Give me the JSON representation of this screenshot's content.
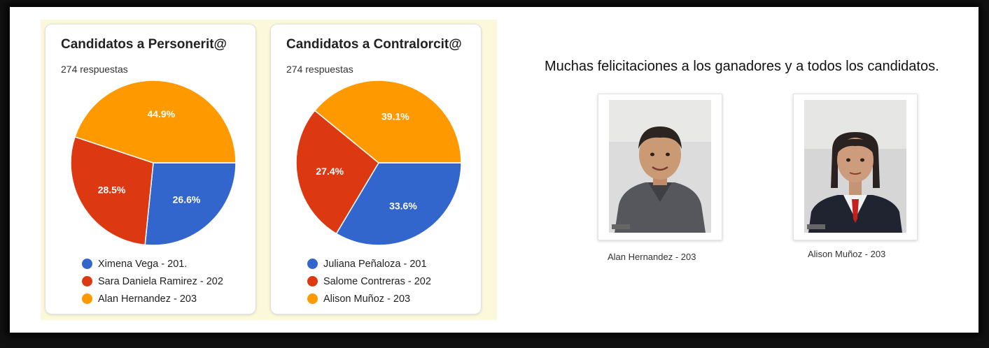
{
  "chart_data": [
    {
      "type": "pie",
      "title": "Candidatos a Personerit@",
      "subtitle": "274 respuestas",
      "categories": [
        "Ximena Vega - 201.",
        "Sara Daniela Ramirez - 202",
        "Alan Hernandez - 203"
      ],
      "values": [
        26.6,
        28.5,
        44.9
      ],
      "value_labels": [
        "26.6%",
        "28.5%",
        "44.9%"
      ],
      "colors": [
        "#3366cc",
        "#dc3912",
        "#ff9900"
      ],
      "legend": "bottom"
    },
    {
      "type": "pie",
      "title": "Candidatos a Contralorcit@",
      "subtitle": "274 respuestas",
      "categories": [
        "Juliana Peñaloza - 201",
        "Salome Contreras - 202",
        "Alison Muñoz - 203"
      ],
      "values": [
        33.6,
        27.4,
        39.1
      ],
      "value_labels": [
        "33.6%",
        "27.4%",
        "39.1%"
      ],
      "colors": [
        "#3366cc",
        "#dc3912",
        "#ff9900"
      ],
      "legend": "bottom"
    }
  ],
  "congrats_text": "Muchas felicitaciones a los ganadores y a todos los candidatos.",
  "winners": [
    {
      "caption": "Alan Hernandez - 203"
    },
    {
      "caption": "Alison Muñoz - 203"
    }
  ]
}
